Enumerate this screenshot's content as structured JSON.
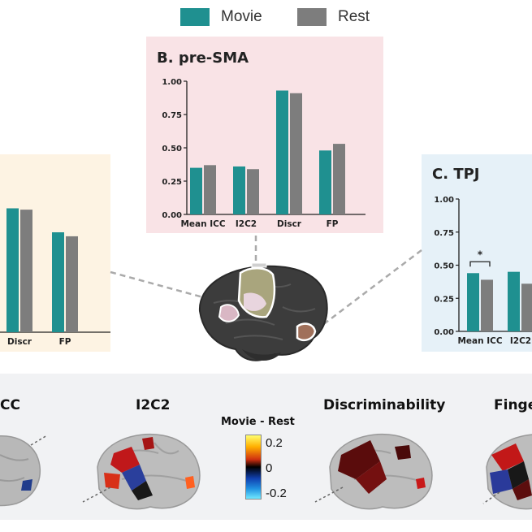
{
  "legend": [
    {
      "label": "Movie",
      "color": "#1f9090"
    },
    {
      "label": "Rest",
      "color": "#7d7d7d"
    }
  ],
  "colors": {
    "movie": "#1f9090",
    "rest": "#7d7d7d",
    "panelA_bg": "#fdf3e3",
    "panelB_bg": "#f9e3e6",
    "panelC_bg": "#e6f1f8"
  },
  "chart_data": [
    {
      "id": "A",
      "type": "bar",
      "title": "",
      "categories": [
        "Discr",
        "FP"
      ],
      "series": [
        {
          "name": "Movie",
          "values": [
            0.93,
            0.75
          ]
        },
        {
          "name": "Rest",
          "values": [
            0.92,
            0.72
          ]
        }
      ],
      "ylim": [
        0,
        1.0
      ]
    },
    {
      "id": "B",
      "type": "bar",
      "title": "B. pre-SMA",
      "categories": [
        "Mean ICC",
        "I2C2",
        "Discr",
        "FP"
      ],
      "series": [
        {
          "name": "Movie",
          "values": [
            0.35,
            0.36,
            0.93,
            0.48
          ]
        },
        {
          "name": "Rest",
          "values": [
            0.37,
            0.34,
            0.91,
            0.53
          ]
        }
      ],
      "yticks": [
        "0.00",
        "0.25",
        "0.50",
        "0.75",
        "1.00"
      ],
      "ylim": [
        0,
        1.0
      ]
    },
    {
      "id": "C",
      "type": "bar",
      "title": "C. TPJ",
      "categories": [
        "Mean ICC",
        "I2C2"
      ],
      "series": [
        {
          "name": "Movie",
          "values": [
            0.44,
            0.45
          ]
        },
        {
          "name": "Rest",
          "values": [
            0.39,
            0.36
          ]
        }
      ],
      "yticks": [
        "0.00",
        "0.25",
        "0.50",
        "0.75",
        "1.00"
      ],
      "ylim": [
        0,
        1.0
      ],
      "annotation": "*"
    }
  ],
  "bottom": {
    "labels": [
      "CC",
      "I2C2",
      "Discriminability",
      "Finge"
    ],
    "colorbar": {
      "title": "Movie - Rest",
      "ticks": [
        "0.2",
        "0",
        "-0.2"
      ]
    }
  }
}
